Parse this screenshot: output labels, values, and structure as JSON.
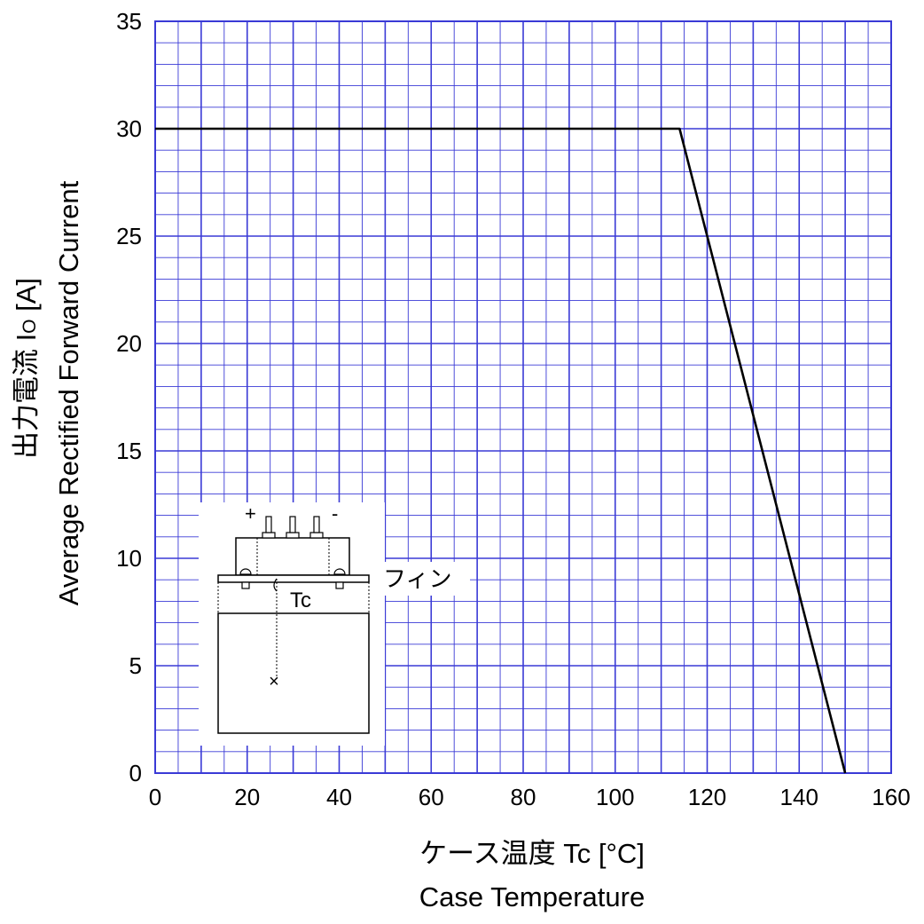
{
  "chart_data": {
    "type": "line",
    "xlim": [
      0,
      160
    ],
    "ylim": [
      0,
      35
    ],
    "x_ticks": [
      "0",
      "20",
      "40",
      "60",
      "80",
      "100",
      "120",
      "140",
      "160"
    ],
    "y_ticks": [
      "0",
      "5",
      "10",
      "15",
      "20",
      "25",
      "30",
      "35"
    ],
    "x_major_step": 10,
    "x_minor_step": 5,
    "y_major_step": 5,
    "y_minor_step": 1,
    "grid": true,
    "grid_color": "#3a3ad6",
    "line_color": "#000000",
    "series": [
      {
        "x": [
          0,
          114,
          150
        ],
        "y": [
          30,
          30,
          0
        ]
      }
    ],
    "xlabel_jp": "ケース温度  Tc  [°C]",
    "xlabel_en": "Case  Temperature",
    "ylabel_jp": "出力電流   I",
    "ylabel_sub": "O",
    "ylabel_unit": " [A]",
    "ylabel_en": "Average Rectified Forward Current"
  },
  "inset": {
    "plus": "+",
    "minus": "-",
    "tc_label": "Tc",
    "fin_label": "フィン",
    "mark": "×"
  }
}
